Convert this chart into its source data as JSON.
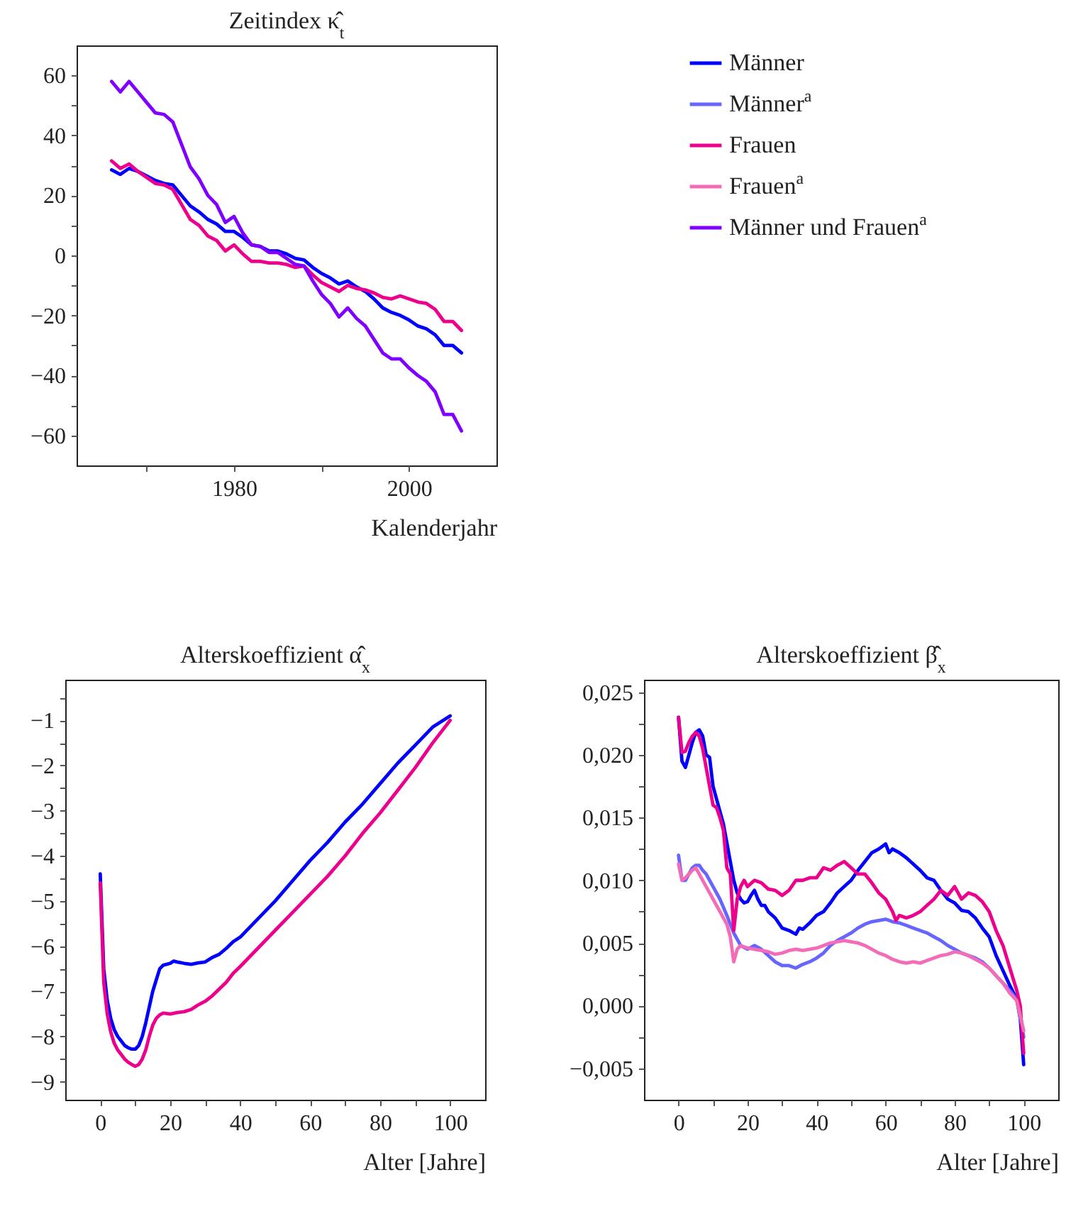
{
  "chart_data": [
    {
      "type": "line",
      "title": "Zeitindex κ̂$_{t}$",
      "xlabel": "Kalenderjahr",
      "xlim": [
        1962,
        2010
      ],
      "xticks": [
        {
          "value": 1970,
          "label": null
        },
        1980,
        {
          "value": 1990,
          "label": null
        },
        2000
      ],
      "ylim": [
        -70,
        70
      ],
      "yticks": [
        -60,
        {
          "value": -50,
          "label": null
        },
        -40,
        {
          "value": -30,
          "label": null
        },
        -20,
        {
          "value": -10,
          "label": null
        },
        0,
        {
          "value": 10,
          "label": null
        },
        20,
        {
          "value": 30,
          "label": null
        },
        40,
        {
          "value": 50,
          "label": null
        },
        60
      ],
      "grid": false,
      "legend": "right",
      "series": [
        {
          "name": "Männer",
          "color": "#0000ff",
          "x": [
            1966,
            1967,
            1968,
            1969,
            1970,
            1971,
            1972,
            1973,
            1974,
            1975,
            1976,
            1977,
            1978,
            1979,
            1980,
            1981,
            1982,
            1983,
            1984,
            1985,
            1986,
            1987,
            1988,
            1989,
            1990,
            1991,
            1992,
            1993,
            1994,
            1995,
            1996,
            1997,
            1998,
            1999,
            2000,
            2001,
            2002,
            2003,
            2004,
            2005,
            2006
          ],
          "values": [
            28.5,
            27,
            29,
            28,
            26.5,
            25,
            24,
            23.5,
            20,
            16.5,
            14.5,
            12,
            10.5,
            8,
            8,
            6,
            3.5,
            3,
            1.5,
            1.5,
            0.5,
            -1,
            -1.5,
            -4,
            -6,
            -7.5,
            -9.5,
            -8.5,
            -10.5,
            -12,
            -14.5,
            -17.5,
            -19,
            -20,
            -21.5,
            -23.5,
            -24.5,
            -26.5,
            -30,
            -30,
            -32.5
          ]
        },
        {
          "name": "Frauen",
          "color": "#ec008c",
          "x": [
            1966,
            1967,
            1968,
            1969,
            1970,
            1971,
            1972,
            1973,
            1974,
            1975,
            1976,
            1977,
            1978,
            1979,
            1980,
            1981,
            1982,
            1983,
            1984,
            1985,
            1986,
            1987,
            1988,
            1989,
            1990,
            1991,
            1992,
            1993,
            1994,
            1995,
            1996,
            1997,
            1998,
            1999,
            2000,
            2001,
            2002,
            2003,
            2004,
            2005,
            2006
          ],
          "values": [
            31.5,
            29,
            30.5,
            28,
            26,
            24,
            23.5,
            22,
            17,
            12,
            10,
            6.5,
            5,
            1.5,
            3.5,
            0.5,
            -2,
            -2,
            -2.5,
            -2.5,
            -3,
            -4,
            -3.5,
            -6.5,
            -9,
            -10.5,
            -12,
            -10,
            -11,
            -11.5,
            -12.5,
            -14,
            -14.5,
            -13.5,
            -14.5,
            -15.5,
            -16,
            -18,
            -22,
            -22,
            -25
          ]
        },
        {
          "name": "Männer und Frauen$^{a}$",
          "color": "#8000ff",
          "x": [
            1966,
            1967,
            1968,
            1969,
            1970,
            1971,
            1972,
            1973,
            1974,
            1975,
            1976,
            1977,
            1978,
            1979,
            1980,
            1981,
            1982,
            1983,
            1984,
            1985,
            1986,
            1987,
            1988,
            1989,
            1990,
            1991,
            1992,
            1993,
            1994,
            1995,
            1996,
            1997,
            1998,
            1999,
            2000,
            2001,
            2002,
            2003,
            2004,
            2005,
            2006
          ],
          "values": [
            58,
            54.5,
            58,
            54.5,
            51,
            47.5,
            47,
            44.5,
            37,
            29.5,
            25.5,
            20,
            17,
            11,
            13,
            7.5,
            3.5,
            3,
            1,
            1,
            -1,
            -3,
            -3.5,
            -8.5,
            -13,
            -16,
            -20.5,
            -17.5,
            -21,
            -23.5,
            -28,
            -32.5,
            -34.5,
            -34.5,
            -37.5,
            -40,
            -42,
            -45.5,
            -53,
            -53,
            -58.5
          ]
        }
      ]
    },
    {
      "type": "line",
      "title": "Alterskoeffizient α̂$_{x}$",
      "xlabel": "Alter [Jahre]",
      "xlim": [
        -10,
        110
      ],
      "xticks": [
        0,
        {
          "value": 10,
          "label": null
        },
        20,
        {
          "value": 30,
          "label": null
        },
        40,
        {
          "value": 50,
          "label": null
        },
        60,
        {
          "value": 70,
          "label": null
        },
        80,
        {
          "value": 90,
          "label": null
        },
        100
      ],
      "ylim": [
        -9.4,
        -0.1
      ],
      "yticks": [
        -9,
        {
          "value": -8.5,
          "label": null
        },
        -8,
        {
          "value": -7.5,
          "label": null
        },
        -7,
        {
          "value": -6.5,
          "label": null
        },
        -6,
        {
          "value": -5.5,
          "label": null
        },
        -5,
        {
          "value": -4.5,
          "label": null
        },
        -4,
        {
          "value": -3.5,
          "label": null
        },
        -3,
        {
          "value": -2.5,
          "label": null
        },
        -2,
        {
          "value": -1.5,
          "label": null
        },
        -1,
        {
          "value": -0.5,
          "label": null
        }
      ],
      "grid": false,
      "series": [
        {
          "name": "Männer",
          "color": "#0000ff",
          "x": [
            0,
            1,
            2,
            3,
            4,
            5,
            6,
            7,
            8,
            9,
            10,
            11,
            12,
            13,
            14,
            15,
            16,
            17,
            18,
            20,
            21,
            22,
            24,
            26,
            28,
            30,
            32,
            34,
            36,
            38,
            40,
            45,
            50,
            55,
            60,
            65,
            70,
            75,
            80,
            85,
            90,
            95,
            100
          ],
          "values": [
            -4.4,
            -6.5,
            -7.2,
            -7.6,
            -7.85,
            -8.0,
            -8.1,
            -8.2,
            -8.25,
            -8.28,
            -8.28,
            -8.2,
            -8.0,
            -7.7,
            -7.35,
            -7.0,
            -6.75,
            -6.5,
            -6.42,
            -6.38,
            -6.33,
            -6.35,
            -6.38,
            -6.4,
            -6.37,
            -6.35,
            -6.25,
            -6.18,
            -6.05,
            -5.9,
            -5.8,
            -5.4,
            -5.0,
            -4.55,
            -4.1,
            -3.7,
            -3.25,
            -2.85,
            -2.4,
            -1.95,
            -1.55,
            -1.15,
            -0.9
          ]
        },
        {
          "name": "Frauen",
          "color": "#ec008c",
          "x": [
            0,
            1,
            2,
            3,
            4,
            5,
            6,
            7,
            8,
            9,
            10,
            11,
            12,
            13,
            14,
            15,
            16,
            17,
            18,
            20,
            22,
            24,
            26,
            28,
            30,
            32,
            34,
            36,
            38,
            40,
            45,
            50,
            55,
            60,
            65,
            70,
            75,
            80,
            85,
            90,
            95,
            100
          ],
          "values": [
            -4.6,
            -6.8,
            -7.5,
            -7.9,
            -8.15,
            -8.3,
            -8.4,
            -8.5,
            -8.57,
            -8.62,
            -8.66,
            -8.62,
            -8.5,
            -8.3,
            -8.0,
            -7.75,
            -7.6,
            -7.52,
            -7.48,
            -7.5,
            -7.47,
            -7.45,
            -7.4,
            -7.3,
            -7.22,
            -7.1,
            -6.95,
            -6.8,
            -6.6,
            -6.45,
            -6.05,
            -5.65,
            -5.25,
            -4.85,
            -4.45,
            -4.0,
            -3.5,
            -3.05,
            -2.55,
            -2.05,
            -1.5,
            -1.0
          ]
        }
      ]
    },
    {
      "type": "line",
      "title": "Alterskoeffizient β̂$_{x}$",
      "xlabel": "Alter [Jahre]",
      "xlim": [
        -10,
        110
      ],
      "xticks": [
        0,
        {
          "value": 10,
          "label": null
        },
        20,
        {
          "value": 30,
          "label": null
        },
        40,
        {
          "value": 50,
          "label": null
        },
        60,
        {
          "value": 70,
          "label": null
        },
        80,
        {
          "value": 90,
          "label": null
        },
        100
      ],
      "ylim": [
        -0.0075,
        0.026
      ],
      "yticks": [
        {
          "value": -0.005,
          "label": "−0,005"
        },
        {
          "value": -0.0025,
          "label": null
        },
        {
          "value": 0,
          "label": "0,000"
        },
        {
          "value": 0.0025,
          "label": null
        },
        {
          "value": 0.005,
          "label": "0,005"
        },
        {
          "value": 0.0075,
          "label": null
        },
        {
          "value": 0.01,
          "label": "0,010"
        },
        {
          "value": 0.0125,
          "label": null
        },
        {
          "value": 0.015,
          "label": "0,015"
        },
        {
          "value": 0.0175,
          "label": null
        },
        {
          "value": 0.02,
          "label": "0,020"
        },
        {
          "value": 0.0225,
          "label": null
        },
        {
          "value": 0.025,
          "label": "0,025"
        }
      ],
      "grid": false,
      "series": [
        {
          "name": "Männer",
          "color": "#0000ff",
          "x": [
            0,
            1,
            2,
            3,
            4,
            5,
            6,
            7,
            8,
            9,
            10,
            11,
            12,
            13,
            14,
            15,
            16,
            17,
            18,
            19,
            20,
            21,
            22,
            23,
            24,
            25,
            26,
            28,
            30,
            32,
            34,
            35,
            36,
            38,
            40,
            42,
            44,
            46,
            48,
            50,
            52,
            54,
            56,
            58,
            60,
            61,
            62,
            64,
            66,
            68,
            70,
            72,
            74,
            76,
            78,
            80,
            82,
            84,
            86,
            88,
            90,
            92,
            94,
            96,
            98,
            99,
            100
          ],
          "values": [
            0.023,
            0.0195,
            0.019,
            0.02,
            0.021,
            0.0218,
            0.022,
            0.0215,
            0.02,
            0.0198,
            0.0175,
            0.0165,
            0.0155,
            0.0145,
            0.013,
            0.0115,
            0.01,
            0.009,
            0.0085,
            0.0082,
            0.0083,
            0.0088,
            0.0092,
            0.0085,
            0.008,
            0.008,
            0.0075,
            0.007,
            0.0062,
            0.006,
            0.0057,
            0.0062,
            0.0061,
            0.0066,
            0.0072,
            0.0075,
            0.0082,
            0.009,
            0.0095,
            0.01,
            0.0108,
            0.0115,
            0.0122,
            0.0125,
            0.0129,
            0.0122,
            0.0125,
            0.0122,
            0.0118,
            0.0113,
            0.0108,
            0.0102,
            0.01,
            0.0092,
            0.0085,
            0.0082,
            0.0076,
            0.0075,
            0.007,
            0.0062,
            0.0055,
            0.004,
            0.0028,
            0.0016,
            0.0005,
            -0.001,
            -0.0047
          ]
        },
        {
          "name": "Männer$^{a}$",
          "color": "#6666ff",
          "x": [
            0,
            1,
            2,
            3,
            4,
            5,
            6,
            7,
            8,
            9,
            10,
            12,
            14,
            16,
            18,
            20,
            22,
            24,
            26,
            28,
            30,
            32,
            34,
            36,
            38,
            40,
            42,
            44,
            46,
            48,
            50,
            52,
            54,
            56,
            58,
            60,
            62,
            64,
            66,
            68,
            70,
            72,
            74,
            76,
            78,
            80,
            82,
            84,
            86,
            88,
            90,
            92,
            94,
            96,
            98,
            100
          ],
          "values": [
            0.012,
            0.01,
            0.01,
            0.0105,
            0.011,
            0.0112,
            0.0112,
            0.0108,
            0.0105,
            0.01,
            0.0095,
            0.0085,
            0.0072,
            0.0058,
            0.0048,
            0.0045,
            0.0048,
            0.0045,
            0.004,
            0.0035,
            0.0032,
            0.0032,
            0.003,
            0.0033,
            0.0035,
            0.0038,
            0.0042,
            0.0048,
            0.0052,
            0.0055,
            0.0058,
            0.0062,
            0.0065,
            0.0067,
            0.0068,
            0.0069,
            0.0067,
            0.0066,
            0.0064,
            0.0062,
            0.006,
            0.0058,
            0.0055,
            0.0052,
            0.0048,
            0.0045,
            0.0042,
            0.004,
            0.0038,
            0.0035,
            0.003,
            0.0024,
            0.0018,
            0.0012,
            0.0005,
            -0.0025
          ]
        },
        {
          "name": "Frauen",
          "color": "#ec008c",
          "x": [
            0,
            1,
            2,
            3,
            4,
            5,
            6,
            7,
            8,
            9,
            10,
            11,
            12,
            13,
            14,
            15,
            16,
            17,
            18,
            19,
            20,
            22,
            24,
            26,
            28,
            30,
            32,
            34,
            36,
            38,
            40,
            42,
            44,
            46,
            48,
            50,
            52,
            54,
            56,
            58,
            60,
            62,
            63,
            64,
            66,
            68,
            70,
            72,
            74,
            76,
            78,
            80,
            82,
            84,
            86,
            88,
            90,
            92,
            94,
            96,
            98,
            99,
            100
          ],
          "values": [
            0.023,
            0.0202,
            0.0203,
            0.021,
            0.0215,
            0.0218,
            0.0215,
            0.0205,
            0.019,
            0.0175,
            0.016,
            0.0158,
            0.015,
            0.014,
            0.011,
            0.0105,
            0.006,
            0.0085,
            0.0095,
            0.01,
            0.0095,
            0.01,
            0.0098,
            0.0093,
            0.0092,
            0.0088,
            0.0092,
            0.01,
            0.01,
            0.0102,
            0.0102,
            0.011,
            0.0108,
            0.0112,
            0.0115,
            0.011,
            0.0105,
            0.0105,
            0.0098,
            0.009,
            0.0085,
            0.0075,
            0.0068,
            0.0072,
            0.007,
            0.0072,
            0.0075,
            0.008,
            0.0085,
            0.0092,
            0.0088,
            0.0095,
            0.0085,
            0.009,
            0.0088,
            0.0083,
            0.0075,
            0.006,
            0.0048,
            0.003,
            0.0012,
            0.0,
            -0.0038
          ]
        },
        {
          "name": "Frauen$^{a}$",
          "color": "#f36cb8",
          "x": [
            0,
            1,
            2,
            3,
            4,
            5,
            6,
            7,
            8,
            9,
            10,
            12,
            14,
            15,
            16,
            17,
            18,
            20,
            22,
            24,
            26,
            28,
            30,
            32,
            34,
            36,
            38,
            40,
            42,
            44,
            46,
            48,
            50,
            52,
            54,
            56,
            58,
            60,
            62,
            64,
            66,
            68,
            70,
            72,
            74,
            76,
            78,
            80,
            82,
            84,
            86,
            88,
            90,
            92,
            94,
            96,
            98,
            100
          ],
          "values": [
            0.0113,
            0.01,
            0.0102,
            0.0105,
            0.0108,
            0.011,
            0.0105,
            0.01,
            0.0095,
            0.009,
            0.0085,
            0.0075,
            0.0065,
            0.0055,
            0.0035,
            0.0045,
            0.0048,
            0.0046,
            0.0045,
            0.0044,
            0.0043,
            0.0041,
            0.0042,
            0.0044,
            0.0045,
            0.0044,
            0.0045,
            0.0046,
            0.0048,
            0.005,
            0.0051,
            0.0052,
            0.0051,
            0.005,
            0.0048,
            0.0045,
            0.0042,
            0.004,
            0.0037,
            0.0035,
            0.0034,
            0.0035,
            0.0034,
            0.0036,
            0.0038,
            0.004,
            0.0041,
            0.0043,
            0.0042,
            0.004,
            0.0037,
            0.0034,
            0.003,
            0.0024,
            0.0018,
            0.001,
            0.0004,
            -0.002
          ]
        }
      ]
    }
  ]
}
